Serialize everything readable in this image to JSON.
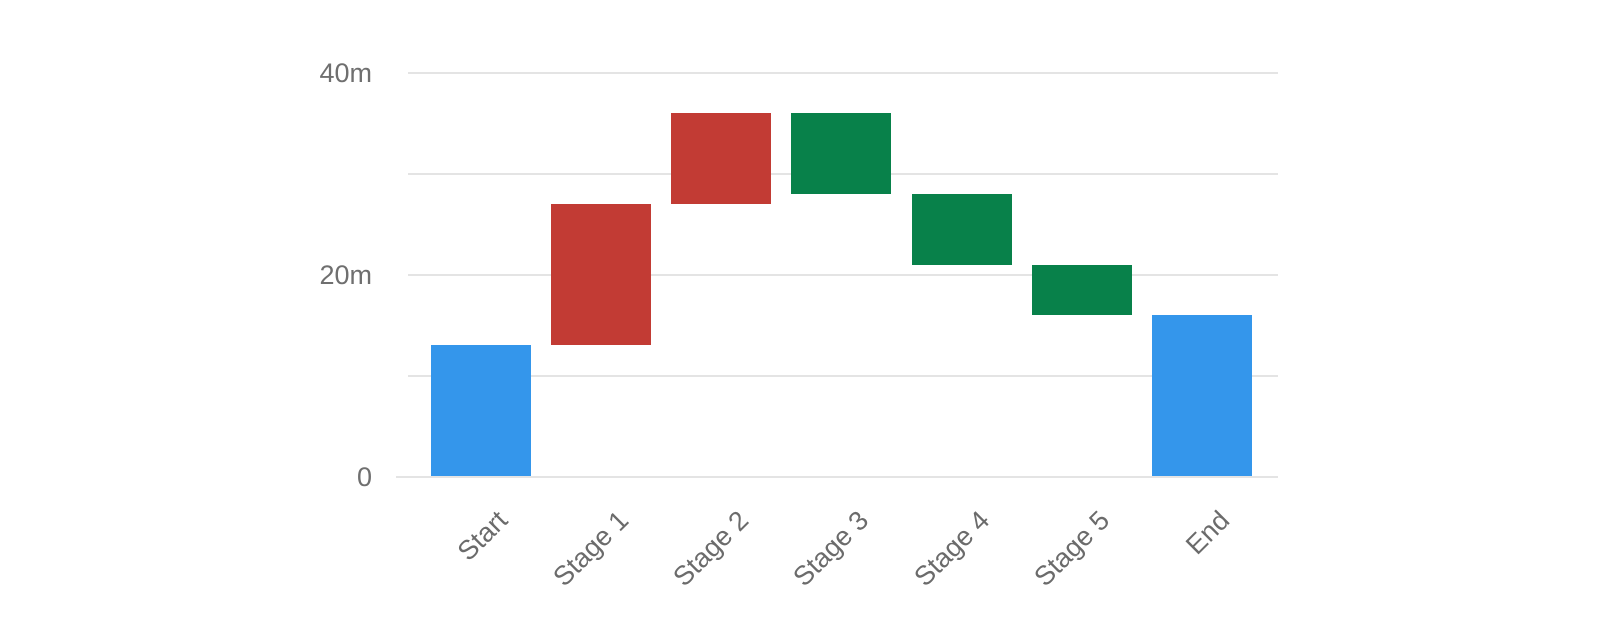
{
  "chart_data": {
    "type": "bar",
    "subtype": "waterfall",
    "title": "",
    "value_suffix": "m",
    "categories": [
      "Start",
      "Stage 1",
      "Stage 2",
      "Stage 3",
      "Stage 4",
      "Stage 5",
      "End"
    ],
    "steps": [
      {
        "label": "Start",
        "kind": "absolute",
        "value": 13,
        "cumulative_start": 0,
        "cumulative_end": 13,
        "color_role": "endpoint"
      },
      {
        "label": "Stage 1",
        "kind": "delta",
        "value": 14,
        "cumulative_start": 13,
        "cumulative_end": 27,
        "color_role": "increase"
      },
      {
        "label": "Stage 2",
        "kind": "delta",
        "value": 9,
        "cumulative_start": 27,
        "cumulative_end": 36,
        "color_role": "increase"
      },
      {
        "label": "Stage 3",
        "kind": "delta",
        "value": -8,
        "cumulative_start": 36,
        "cumulative_end": 28,
        "color_role": "decrease"
      },
      {
        "label": "Stage 4",
        "kind": "delta",
        "value": -7,
        "cumulative_start": 28,
        "cumulative_end": 21,
        "color_role": "decrease"
      },
      {
        "label": "Stage 5",
        "kind": "delta",
        "value": -5,
        "cumulative_start": 21,
        "cumulative_end": 16,
        "color_role": "decrease"
      },
      {
        "label": "End",
        "kind": "absolute",
        "value": 16,
        "cumulative_start": 0,
        "cumulative_end": 16,
        "color_role": "endpoint"
      }
    ],
    "colors": {
      "endpoint": "#3496eb",
      "increase": "#c23b34",
      "decrease": "#08814a",
      "gridline": "#e4e4e4",
      "axis_text": "#6f6f6f"
    },
    "y_axis": {
      "range": [
        0,
        40
      ],
      "tick_values": [
        0,
        20,
        40
      ],
      "tick_labels": [
        "0",
        "20m",
        "40m"
      ],
      "gridline_values": [
        0,
        10,
        20,
        30,
        40
      ],
      "grid": true
    },
    "x_axis": {
      "label_rotation_deg": -45
    },
    "legend": "none"
  }
}
